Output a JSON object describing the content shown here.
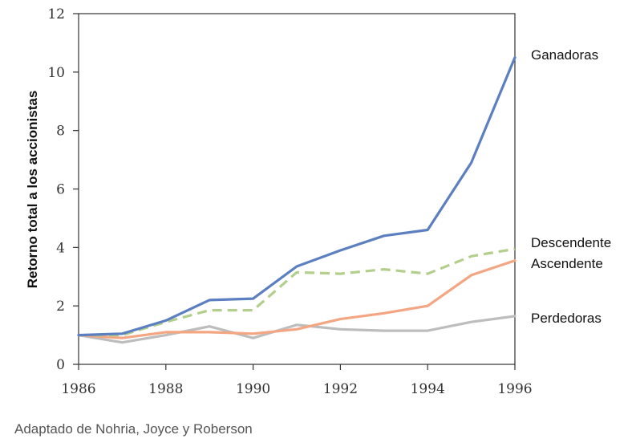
{
  "chart_data": {
    "type": "line",
    "x": [
      1986,
      1987,
      1988,
      1989,
      1990,
      1991,
      1992,
      1993,
      1994,
      1995,
      1996
    ],
    "xticks": [
      "1986",
      "1988",
      "1990",
      "1992",
      "1994",
      "1996"
    ],
    "yticks": [
      "0",
      "2",
      "4",
      "6",
      "8",
      "10",
      "12"
    ],
    "xlim": [
      1986,
      1996
    ],
    "ylim": [
      0,
      12
    ],
    "xlabel": "",
    "ylabel": "Retorno total a los accionistas",
    "title": "",
    "grid": false,
    "series": [
      {
        "name": "Ganadoras",
        "color": "#5b7fc0",
        "style": "solid",
        "values": [
          1.0,
          1.05,
          1.5,
          2.2,
          2.25,
          3.35,
          3.9,
          4.4,
          4.6,
          6.9,
          10.5
        ]
      },
      {
        "name": "Descendente",
        "color": "#b3cf8c",
        "style": "dashed",
        "values": [
          1.0,
          1.0,
          1.45,
          1.85,
          1.85,
          3.15,
          3.1,
          3.25,
          3.1,
          3.7,
          3.95
        ]
      },
      {
        "name": "Ascendente",
        "color": "#f4a582",
        "style": "solid",
        "values": [
          1.0,
          0.9,
          1.1,
          1.1,
          1.05,
          1.2,
          1.55,
          1.75,
          2.0,
          3.05,
          3.55
        ]
      },
      {
        "name": "Perdedoras",
        "color": "#bdbdbd",
        "style": "solid",
        "values": [
          1.0,
          0.75,
          1.0,
          1.3,
          0.9,
          1.35,
          1.2,
          1.15,
          1.15,
          1.45,
          1.65
        ]
      }
    ]
  },
  "caption": "Adaptado de Nohria, Joyce y Roberson"
}
